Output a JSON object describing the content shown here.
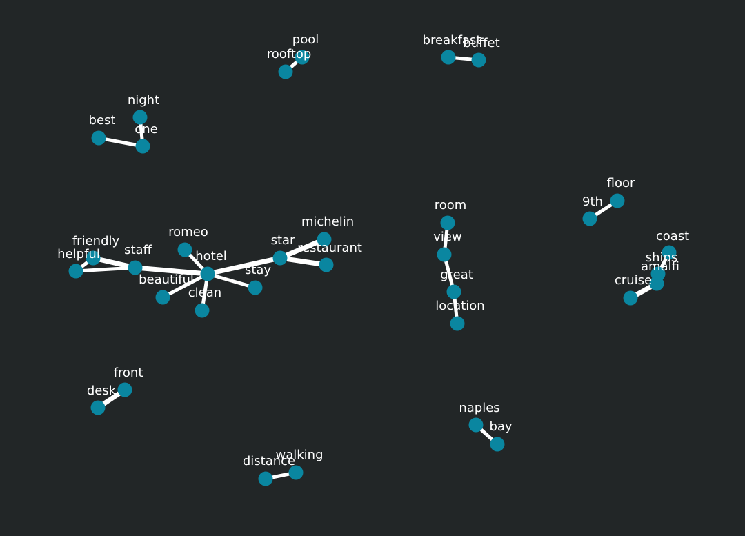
{
  "colors": {
    "background": "#222627",
    "node": "#0a86a0",
    "edge": "#ffffff",
    "label": "#ffffff"
  },
  "chart_data": {
    "type": "network",
    "title": "",
    "nodes": [
      "pool",
      "rooftop",
      "breakfast",
      "buffet",
      "night",
      "best",
      "one",
      "floor",
      "9th",
      "room",
      "view",
      "great",
      "location",
      "michelin",
      "star",
      "restaurant",
      "stay",
      "romeo",
      "hotel",
      "beautiful",
      "clean",
      "friendly",
      "helpful",
      "staff",
      "coast",
      "ships",
      "amalfi",
      "cruise",
      "front",
      "desk",
      "naples",
      "bay",
      "distance",
      "walking"
    ],
    "edges": [
      {
        "source": "rooftop",
        "target": "pool",
        "weight": 2
      },
      {
        "source": "breakfast",
        "target": "buffet",
        "weight": 2
      },
      {
        "source": "best",
        "target": "one",
        "weight": 2
      },
      {
        "source": "night",
        "target": "one",
        "weight": 2
      },
      {
        "source": "9th",
        "target": "floor",
        "weight": 2
      },
      {
        "source": "room",
        "target": "view",
        "weight": 2
      },
      {
        "source": "view",
        "target": "great",
        "weight": 2
      },
      {
        "source": "great",
        "target": "location",
        "weight": 2
      },
      {
        "source": "helpful",
        "target": "friendly",
        "weight": 2
      },
      {
        "source": "friendly",
        "target": "staff",
        "weight": 3
      },
      {
        "source": "helpful",
        "target": "staff",
        "weight": 2
      },
      {
        "source": "staff",
        "target": "hotel",
        "weight": 3
      },
      {
        "source": "romeo",
        "target": "hotel",
        "weight": 2
      },
      {
        "source": "hotel",
        "target": "beautiful",
        "weight": 2
      },
      {
        "source": "hotel",
        "target": "clean",
        "weight": 2
      },
      {
        "source": "hotel",
        "target": "stay",
        "weight": 2
      },
      {
        "source": "hotel",
        "target": "star",
        "weight": 3
      },
      {
        "source": "star",
        "target": "michelin",
        "weight": 3
      },
      {
        "source": "star",
        "target": "restaurant",
        "weight": 3
      },
      {
        "source": "coast",
        "target": "ships",
        "weight": 2
      },
      {
        "source": "ships",
        "target": "amalfi",
        "weight": 2
      },
      {
        "source": "amalfi",
        "target": "cruise",
        "weight": 3
      },
      {
        "source": "desk",
        "target": "front",
        "weight": 3
      },
      {
        "source": "naples",
        "target": "bay",
        "weight": 2
      },
      {
        "source": "distance",
        "target": "walking",
        "weight": 2
      }
    ]
  }
}
